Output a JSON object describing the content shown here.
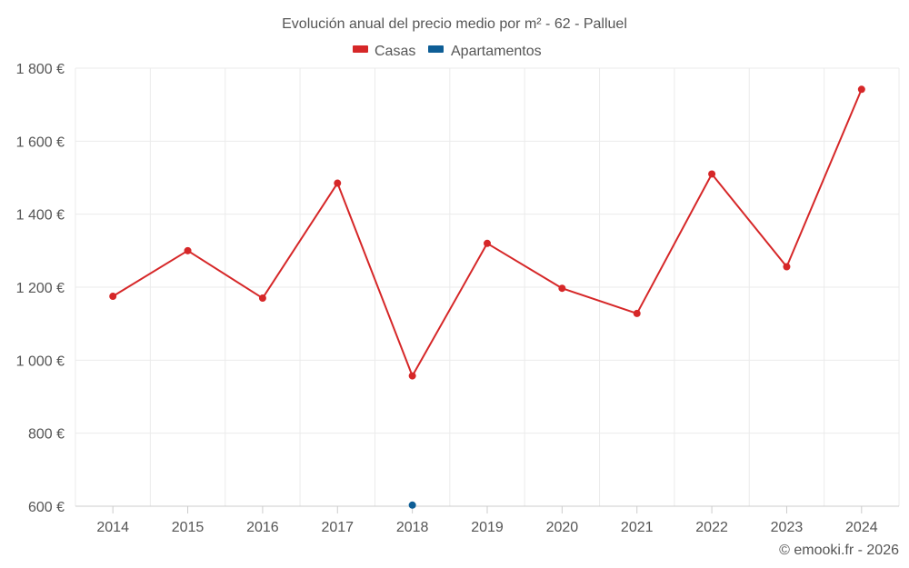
{
  "chart_data": {
    "type": "line",
    "title": "Evolución anual del precio medio por m² - 62 - Palluel",
    "categories": [
      "2014",
      "2015",
      "2016",
      "2017",
      "2018",
      "2019",
      "2020",
      "2021",
      "2022",
      "2023",
      "2024"
    ],
    "series": [
      {
        "name": "Casas",
        "color": "#d62728",
        "values": [
          1175,
          1300,
          1170,
          1485,
          957,
          1320,
          1197,
          1128,
          1510,
          1256,
          1742
        ]
      },
      {
        "name": "Apartamentos",
        "color": "#0e5e96",
        "values": [
          null,
          null,
          null,
          null,
          603,
          null,
          null,
          null,
          null,
          null,
          null
        ]
      }
    ],
    "ylim": [
      600,
      1800
    ],
    "yticks": [
      600,
      800,
      1000,
      1200,
      1400,
      1600,
      1800
    ],
    "ytick_labels": [
      "600 €",
      "800 €",
      "1 000 €",
      "1 200 €",
      "1 400 €",
      "1 600 €",
      "1 800 €"
    ],
    "grid": true,
    "legend_position": "top-center"
  },
  "credit": "© emooki.fr - 2026"
}
